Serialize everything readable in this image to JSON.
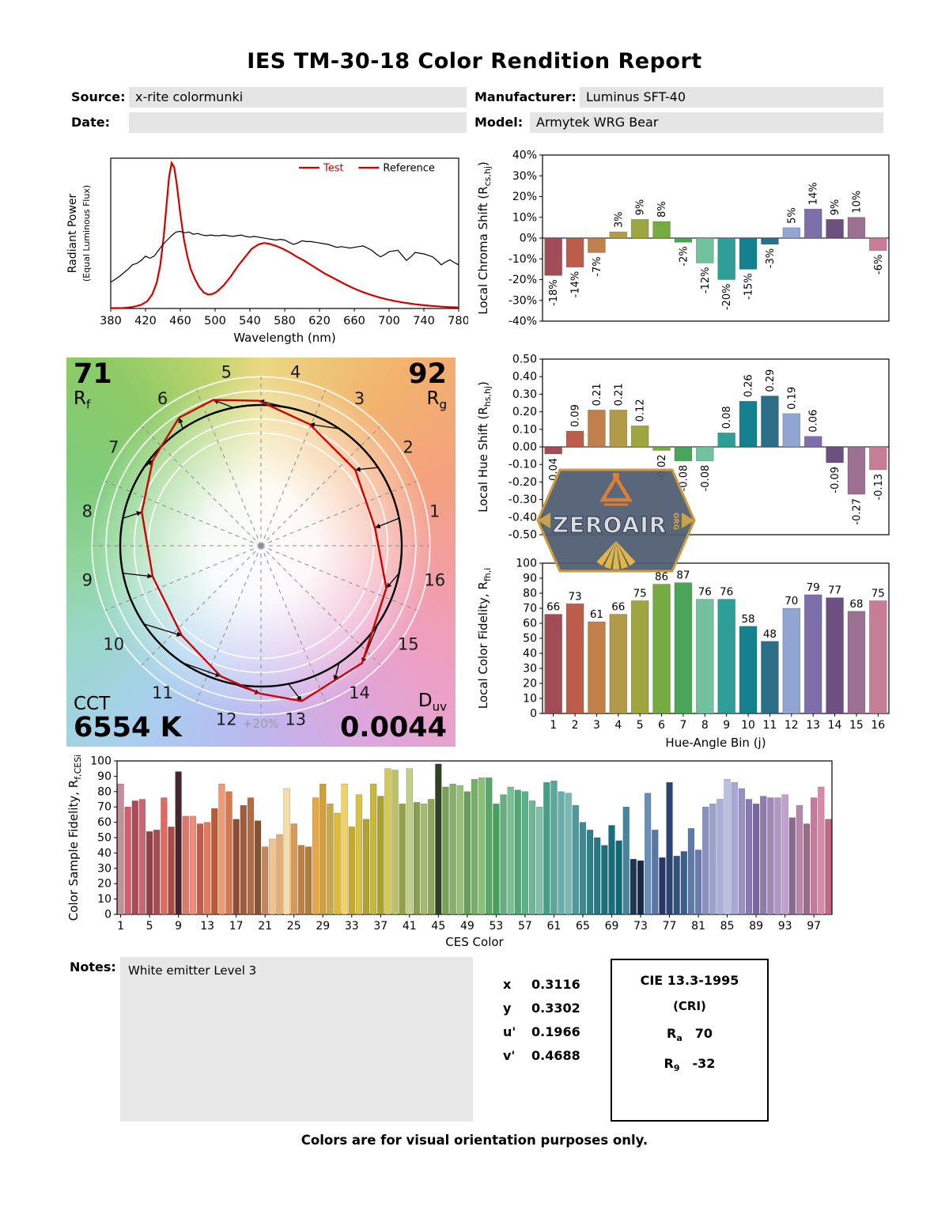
{
  "title": "IES TM-30-18 Color Rendition Report",
  "header": {
    "source_label": "Source:",
    "source_value": "x-rite colormunki",
    "manufacturer_label": "Manufacturer:",
    "manufacturer_value": "Luminus SFT-40",
    "date_label": "Date:",
    "date_value": "",
    "model_label": "Model:",
    "model_value": "Armytek WRG Bear"
  },
  "watermark": {
    "text": "ZEROAIR",
    "suffix": "ORG"
  },
  "notes": {
    "label": "Notes:",
    "text": "White emitter Level 3"
  },
  "chromaticity": {
    "rows": [
      {
        "label": "x",
        "value": "0.3116"
      },
      {
        "label": "y",
        "value": "0.3302"
      },
      {
        "label": "u'",
        "value": "0.1966"
      },
      {
        "label": "v'",
        "value": "0.4688"
      }
    ]
  },
  "cri": {
    "title": "CIE 13.3-1995",
    "subtitle": "(CRI)",
    "ra_letter": "R",
    "ra_sub": "a",
    "ra_value": "70",
    "r9_letter": "R",
    "r9_sub": "9",
    "r9_value": "-32"
  },
  "footer": "Colors are for visual orientation purposes only.",
  "cvg": {
    "rf_value": "71",
    "rf_letter": "R",
    "rf_sub": "f",
    "rg_value": "92",
    "rg_letter": "R",
    "rg_sub": "g",
    "cct_label": "CCT",
    "cct_value": "6554 K",
    "duv_letter": "D",
    "duv_sub": "uv",
    "duv_value": "0.0044",
    "ring_label": "+20%"
  },
  "palette": {
    "hue_bins": [
      "#a14d55",
      "#bb5d4a",
      "#c07f4b",
      "#b39a49",
      "#9da63f",
      "#76ab42",
      "#4aa558",
      "#71c19e",
      "#2f9e98",
      "#15808e",
      "#2b6f87",
      "#90a5d2",
      "#7e6eaa",
      "#6b5080",
      "#9b7093",
      "#c67e97"
    ]
  },
  "chart_data": [
    {
      "id": "spd",
      "type": "line",
      "xlabel": "Wavelength (nm)",
      "ylabel_lines": [
        "Radiant Power",
        "(Equal Luminous Flux)"
      ],
      "xmin": 380,
      "xmax": 780,
      "xtick_step": 40,
      "legend": [
        {
          "label": "Test",
          "color": "#cc0000",
          "text_color": "#cc0000"
        },
        {
          "label": "Reference",
          "color": "#cc0000",
          "text_color": "#000000"
        }
      ],
      "series": [
        {
          "name": "Test",
          "color": "#cc0000",
          "width": 2.2,
          "points": [
            [
              380,
              0.002
            ],
            [
              395,
              0.004
            ],
            [
              405,
              0.01
            ],
            [
              415,
              0.025
            ],
            [
              422,
              0.05
            ],
            [
              428,
              0.1
            ],
            [
              433,
              0.18
            ],
            [
              437,
              0.3
            ],
            [
              441,
              0.5
            ],
            [
              444,
              0.7
            ],
            [
              447,
              0.9
            ],
            [
              450,
              1.0
            ],
            [
              453,
              0.97
            ],
            [
              456,
              0.85
            ],
            [
              460,
              0.65
            ],
            [
              464,
              0.48
            ],
            [
              468,
              0.36
            ],
            [
              472,
              0.27
            ],
            [
              477,
              0.2
            ],
            [
              482,
              0.145
            ],
            [
              487,
              0.11
            ],
            [
              492,
              0.095
            ],
            [
              497,
              0.1
            ],
            [
              502,
              0.115
            ],
            [
              510,
              0.16
            ],
            [
              518,
              0.22
            ],
            [
              526,
              0.29
            ],
            [
              534,
              0.35
            ],
            [
              542,
              0.41
            ],
            [
              550,
              0.44
            ],
            [
              556,
              0.45
            ],
            [
              562,
              0.445
            ],
            [
              570,
              0.43
            ],
            [
              578,
              0.41
            ],
            [
              586,
              0.385
            ],
            [
              594,
              0.355
            ],
            [
              602,
              0.33
            ],
            [
              610,
              0.3
            ],
            [
              618,
              0.27
            ],
            [
              626,
              0.24
            ],
            [
              634,
              0.215
            ],
            [
              642,
              0.19
            ],
            [
              650,
              0.165
            ],
            [
              658,
              0.142
            ],
            [
              666,
              0.122
            ],
            [
              674,
              0.104
            ],
            [
              682,
              0.088
            ],
            [
              690,
              0.074
            ],
            [
              698,
              0.062
            ],
            [
              706,
              0.052
            ],
            [
              714,
              0.043
            ],
            [
              722,
              0.036
            ],
            [
              730,
              0.029
            ],
            [
              738,
              0.024
            ],
            [
              746,
              0.019
            ],
            [
              754,
              0.015
            ],
            [
              762,
              0.012
            ],
            [
              770,
              0.009
            ],
            [
              780,
              0.007
            ]
          ]
        },
        {
          "name": "Reference",
          "color": "#000000",
          "width": 1.2,
          "points": [
            [
              380,
              0.18
            ],
            [
              390,
              0.22
            ],
            [
              400,
              0.27
            ],
            [
              405,
              0.3
            ],
            [
              410,
              0.31
            ],
            [
              415,
              0.33
            ],
            [
              420,
              0.36
            ],
            [
              425,
              0.345
            ],
            [
              430,
              0.36
            ],
            [
              435,
              0.4
            ],
            [
              440,
              0.44
            ],
            [
              445,
              0.47
            ],
            [
              450,
              0.5
            ],
            [
              455,
              0.525
            ],
            [
              460,
              0.53
            ],
            [
              465,
              0.52
            ],
            [
              470,
              0.525
            ],
            [
              475,
              0.51
            ],
            [
              480,
              0.515
            ],
            [
              485,
              0.505
            ],
            [
              490,
              0.5
            ],
            [
              495,
              0.505
            ],
            [
              500,
              0.5
            ],
            [
              505,
              0.5
            ],
            [
              510,
              0.505
            ],
            [
              515,
              0.5
            ],
            [
              520,
              0.495
            ],
            [
              525,
              0.5
            ],
            [
              530,
              0.505
            ],
            [
              535,
              0.495
            ],
            [
              540,
              0.49
            ],
            [
              545,
              0.495
            ],
            [
              550,
              0.49
            ],
            [
              555,
              0.485
            ],
            [
              560,
              0.48
            ],
            [
              565,
              0.475
            ],
            [
              570,
              0.47
            ],
            [
              575,
              0.475
            ],
            [
              580,
              0.47
            ],
            [
              585,
              0.455
            ],
            [
              590,
              0.44
            ],
            [
              595,
              0.45
            ],
            [
              600,
              0.465
            ],
            [
              605,
              0.46
            ],
            [
              610,
              0.46
            ],
            [
              615,
              0.455
            ],
            [
              620,
              0.45
            ],
            [
              625,
              0.445
            ],
            [
              630,
              0.44
            ],
            [
              635,
              0.43
            ],
            [
              640,
              0.42
            ],
            [
              645,
              0.425
            ],
            [
              650,
              0.42
            ],
            [
              655,
              0.415
            ],
            [
              660,
              0.42
            ],
            [
              665,
              0.425
            ],
            [
              670,
              0.43
            ],
            [
              675,
              0.415
            ],
            [
              680,
              0.4
            ],
            [
              685,
              0.375
            ],
            [
              690,
              0.355
            ],
            [
              695,
              0.37
            ],
            [
              700,
              0.39
            ],
            [
              705,
              0.395
            ],
            [
              710,
              0.4
            ],
            [
              715,
              0.365
            ],
            [
              720,
              0.33
            ],
            [
              725,
              0.355
            ],
            [
              730,
              0.385
            ],
            [
              735,
              0.38
            ],
            [
              740,
              0.375
            ],
            [
              745,
              0.365
            ],
            [
              750,
              0.355
            ],
            [
              755,
              0.33
            ],
            [
              760,
              0.3
            ],
            [
              765,
              0.32
            ],
            [
              770,
              0.335
            ],
            [
              775,
              0.315
            ],
            [
              780,
              0.3
            ]
          ]
        }
      ]
    },
    {
      "id": "chroma",
      "type": "bar",
      "ylabel_parts": [
        {
          "t": "Local Chroma Shift (R"
        },
        {
          "t": "cs,hj",
          "sub": true
        },
        {
          "t": ")"
        }
      ],
      "ymin": -40,
      "ymax": 40,
      "ystep": 10,
      "yfmt": "pct",
      "values": [
        -18,
        -14,
        -7,
        3,
        9,
        8,
        -2,
        -12,
        -20,
        -15,
        -3,
        5,
        14,
        9,
        10,
        -6
      ],
      "labels": [
        "-18%",
        "-14%",
        "-7%",
        "3%",
        "9%",
        "8%",
        "-2%",
        "-12%",
        "-20%",
        "-15%",
        "-3%",
        "5%",
        "14%",
        "9%",
        "10%",
        "-6%"
      ],
      "colors": "hue_bins"
    },
    {
      "id": "hue",
      "type": "bar",
      "ylabel_parts": [
        {
          "t": "Local Hue Shift (R"
        },
        {
          "t": "hs,hj",
          "sub": true
        },
        {
          "t": ")"
        }
      ],
      "ymin": -0.5,
      "ymax": 0.5,
      "ystep": 0.1,
      "yfmt": "f2",
      "values": [
        -0.04,
        0.09,
        0.21,
        0.21,
        0.12,
        -0.02,
        -0.08,
        -0.08,
        0.08,
        0.26,
        0.29,
        0.19,
        0.06,
        -0.09,
        -0.27,
        -0.13
      ],
      "labels": [
        "-0.04",
        "0.09",
        "0.21",
        "0.21",
        "0.12",
        "-0.02",
        "-0.08",
        "-0.08",
        "0.08",
        "0.26",
        "0.29",
        "0.19",
        "0.06",
        "-0.09",
        "-0.27",
        "-0.13"
      ],
      "colors": "hue_bins"
    },
    {
      "id": "fidelity",
      "type": "bar",
      "ylabel_parts": [
        {
          "t": "Local Color Fidelity, R"
        },
        {
          "t": "fh,i",
          "sub": true
        }
      ],
      "xlabel": "Hue-Angle Bin (j)",
      "ymin": 0,
      "ymax": 100,
      "ystep": 10,
      "yfmt": "int",
      "values": [
        66,
        73,
        61,
        66,
        75,
        86,
        87,
        76,
        76,
        58,
        48,
        70,
        79,
        77,
        68,
        75
      ],
      "labels": [
        "66",
        "73",
        "61",
        "66",
        "75",
        "86",
        "87",
        "76",
        "76",
        "58",
        "48",
        "70",
        "79",
        "77",
        "68",
        "75"
      ],
      "colors": "hue_bins"
    },
    {
      "id": "ces",
      "type": "bar",
      "ylabel_parts": [
        {
          "t": "Color Sample Fidelity, R"
        },
        {
          "t": "f,CESi",
          "sub": true
        }
      ],
      "xlabel": "CES Color",
      "ymin": 0,
      "ymax": 100,
      "ystep": 10,
      "yfmt": "int",
      "values": [
        85,
        70,
        74,
        75,
        54,
        55,
        76,
        57,
        93,
        64,
        64,
        59,
        60,
        69,
        85,
        80,
        62,
        71,
        76,
        61,
        44,
        49,
        52,
        82,
        59,
        45,
        44,
        76,
        85,
        72,
        66,
        85,
        57,
        78,
        62,
        85,
        77,
        95,
        94,
        72,
        95,
        73,
        72,
        75,
        98,
        83,
        85,
        84,
        80,
        88,
        89,
        89,
        72,
        78,
        83,
        81,
        80,
        74,
        70,
        86,
        87,
        80,
        79,
        71,
        60,
        55,
        50,
        45,
        58,
        48,
        70,
        36,
        35,
        79,
        55,
        37,
        86,
        38,
        41,
        56,
        42,
        70,
        72,
        75,
        88,
        86,
        82,
        75,
        72,
        77,
        76,
        76,
        78,
        63,
        71,
        59,
        76,
        83,
        62
      ],
      "colors": [
        "#c48e9b",
        "#d06070",
        "#b04858",
        "#c86870",
        "#943e48",
        "#a84c50",
        "#e06a60",
        "#aa4c44",
        "#46262c",
        "#e0766a",
        "#ef8d7a",
        "#cc584a",
        "#e87a5a",
        "#bc5a38",
        "#f09a78",
        "#d67a4e",
        "#8e4c34",
        "#a25c3a",
        "#b26c42",
        "#8a5030",
        "#c08a60",
        "#eec494",
        "#e4ae6c",
        "#f6dca6",
        "#d89a50",
        "#c08244",
        "#b27a34",
        "#e8a843",
        "#d0a232",
        "#c8aa44",
        "#e0ba34",
        "#f0d468",
        "#c8a824",
        "#d8c244",
        "#b0a232",
        "#c8ba34",
        "#a8a032",
        "#d2ca54",
        "#bac264",
        "#96a242",
        "#c2d284",
        "#86a050",
        "#a8ba6a",
        "#8fa858",
        "#2e4026",
        "#76a056",
        "#86b066",
        "#96c279",
        "#66a056",
        "#76b066",
        "#86c278",
        "#56a866",
        "#46a060",
        "#66b080",
        "#76c292",
        "#4ea878",
        "#5eb088",
        "#6eb898",
        "#7ec2aa",
        "#46a088",
        "#56a898",
        "#66b0a8",
        "#76bab2",
        "#4e9a9a",
        "#3e8a92",
        "#2e8088",
        "#26787f",
        "#1e7078",
        "#156f80",
        "#0e6876",
        "#4486a2",
        "#1e3656",
        "#162846",
        "#6690ba",
        "#5678a8",
        "#263666",
        "#2c4474",
        "#32527e",
        "#3a6090",
        "#5a7aaa",
        "#6a7ab0",
        "#8a92c4",
        "#9aa2d0",
        "#a8b0da",
        "#b8c0e4",
        "#a8a8d8",
        "#9a90c8",
        "#8a7ab4",
        "#7a66a2",
        "#907aae",
        "#a088ba",
        "#b098c6",
        "#c0a0cc",
        "#8a6a92",
        "#b886aa",
        "#9a6a86",
        "#c87898",
        "#d888a8",
        "#c06888"
      ]
    },
    {
      "id": "cvg",
      "type": "vector",
      "rf": 71,
      "rg": 92,
      "cct": "6554 K",
      "duv": "0.0044",
      "bins": 16,
      "chroma_shift_pct": [
        -18,
        -14,
        -7,
        3,
        9,
        8,
        -2,
        -12,
        -20,
        -15,
        -3,
        5,
        14,
        9,
        10,
        -6
      ],
      "hue_shift_rad": [
        -0.04,
        0.09,
        0.21,
        0.21,
        0.12,
        -0.02,
        -0.08,
        -0.08,
        0.08,
        0.26,
        0.29,
        0.19,
        0.06,
        -0.09,
        -0.27,
        -0.13
      ]
    }
  ]
}
